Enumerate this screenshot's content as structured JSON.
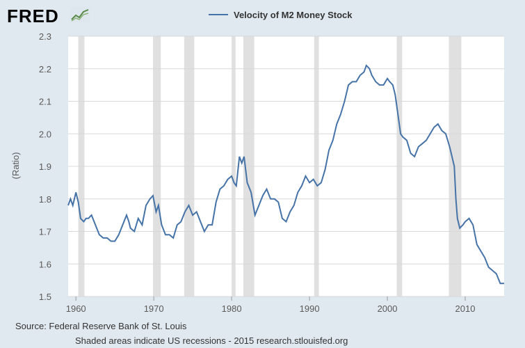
{
  "branding": {
    "logo_text": "FRED",
    "logo_icon": "fred-chart-icon"
  },
  "footer": {
    "source": "Source: Federal Reserve Bank of St. Louis",
    "note": "Shaded areas indicate US recessions - 2015 research.stlouisfed.org"
  },
  "colors": {
    "line": "#4572a7",
    "recession": "#e0e0e0",
    "plot_bg": "#ffffff",
    "page_bg": "#e1e9f0",
    "grid": "#d8d8d8"
  },
  "chart_data": {
    "type": "line",
    "legend": "top-center",
    "grid": true,
    "xlabel": "",
    "ylabel": "(Ratio)",
    "xlim": [
      1959,
      2015
    ],
    "ylim": [
      1.5,
      2.3
    ],
    "yticks": [
      1.5,
      1.6,
      1.7,
      1.8,
      1.9,
      2.0,
      2.1,
      2.2,
      2.3
    ],
    "ytick_labels": [
      "1.5",
      "1.6",
      "1.7",
      "1.8",
      "1.9",
      "2.0",
      "2.1",
      "2.2",
      "2.3"
    ],
    "xticks": [
      1960,
      1970,
      1980,
      1990,
      2000,
      2010
    ],
    "xtick_labels": [
      "1960",
      "1970",
      "1980",
      "1990",
      "2000",
      "2010"
    ],
    "recessions": [
      [
        1960.3,
        1961.1
      ],
      [
        1969.9,
        1970.9
      ],
      [
        1973.9,
        1975.2
      ],
      [
        1980.0,
        1980.5
      ],
      [
        1981.5,
        1982.9
      ],
      [
        1990.6,
        1991.2
      ],
      [
        2001.2,
        2001.9
      ],
      [
        2007.9,
        2009.5
      ]
    ],
    "series": [
      {
        "name": "Velocity of M2 Money Stock",
        "x": [
          1959.0,
          1959.3,
          1959.6,
          1960.0,
          1960.3,
          1960.6,
          1961.0,
          1961.3,
          1961.6,
          1962.0,
          1962.5,
          1963.0,
          1963.5,
          1964.0,
          1964.5,
          1965.0,
          1965.5,
          1966.0,
          1966.5,
          1966.8,
          1967.0,
          1967.5,
          1968.0,
          1968.5,
          1969.0,
          1969.5,
          1969.9,
          1970.3,
          1970.6,
          1971.0,
          1971.5,
          1972.0,
          1972.5,
          1973.0,
          1973.5,
          1974.0,
          1974.5,
          1975.0,
          1975.5,
          1976.0,
          1976.5,
          1977.0,
          1977.5,
          1978.0,
          1978.5,
          1979.0,
          1979.5,
          1980.0,
          1980.3,
          1980.6,
          1981.0,
          1981.3,
          1981.6,
          1982.0,
          1982.5,
          1983.0,
          1983.5,
          1984.0,
          1984.5,
          1985.0,
          1985.5,
          1986.0,
          1986.5,
          1987.0,
          1987.5,
          1988.0,
          1988.5,
          1989.0,
          1989.5,
          1990.0,
          1990.5,
          1991.0,
          1991.5,
          1992.0,
          1992.5,
          1993.0,
          1993.5,
          1994.0,
          1994.5,
          1995.0,
          1995.5,
          1996.0,
          1996.5,
          1997.0,
          1997.3,
          1997.7,
          1998.0,
          1998.5,
          1999.0,
          1999.5,
          2000.0,
          2000.3,
          2000.7,
          2001.0,
          2001.3,
          2001.7,
          2002.0,
          2002.5,
          2003.0,
          2003.5,
          2004.0,
          2004.5,
          2005.0,
          2005.5,
          2006.0,
          2006.5,
          2007.0,
          2007.5,
          2008.0,
          2008.3,
          2008.6,
          2008.8,
          2009.0,
          2009.3,
          2009.7,
          2010.0,
          2010.5,
          2011.0,
          2011.5,
          2012.0,
          2012.5,
          2013.0,
          2013.5,
          2014.0,
          2014.5,
          2015.0
        ],
        "values": [
          1.78,
          1.8,
          1.78,
          1.82,
          1.79,
          1.74,
          1.73,
          1.74,
          1.74,
          1.75,
          1.72,
          1.69,
          1.68,
          1.68,
          1.67,
          1.67,
          1.69,
          1.72,
          1.75,
          1.73,
          1.71,
          1.7,
          1.74,
          1.72,
          1.78,
          1.8,
          1.81,
          1.76,
          1.78,
          1.72,
          1.69,
          1.69,
          1.68,
          1.72,
          1.73,
          1.76,
          1.78,
          1.75,
          1.76,
          1.73,
          1.7,
          1.72,
          1.72,
          1.79,
          1.83,
          1.84,
          1.86,
          1.87,
          1.85,
          1.84,
          1.93,
          1.91,
          1.93,
          1.85,
          1.82,
          1.75,
          1.78,
          1.81,
          1.83,
          1.8,
          1.8,
          1.79,
          1.74,
          1.73,
          1.76,
          1.78,
          1.82,
          1.84,
          1.87,
          1.85,
          1.86,
          1.84,
          1.85,
          1.89,
          1.95,
          1.98,
          2.03,
          2.06,
          2.1,
          2.15,
          2.16,
          2.16,
          2.18,
          2.19,
          2.21,
          2.2,
          2.18,
          2.16,
          2.15,
          2.15,
          2.17,
          2.16,
          2.15,
          2.12,
          2.07,
          2.0,
          1.99,
          1.98,
          1.94,
          1.93,
          1.96,
          1.97,
          1.98,
          2.0,
          2.02,
          2.03,
          2.01,
          2.0,
          1.96,
          1.93,
          1.9,
          1.8,
          1.74,
          1.71,
          1.72,
          1.73,
          1.74,
          1.72,
          1.66,
          1.64,
          1.62,
          1.59,
          1.58,
          1.57,
          1.54,
          1.54
        ]
      }
    ]
  }
}
